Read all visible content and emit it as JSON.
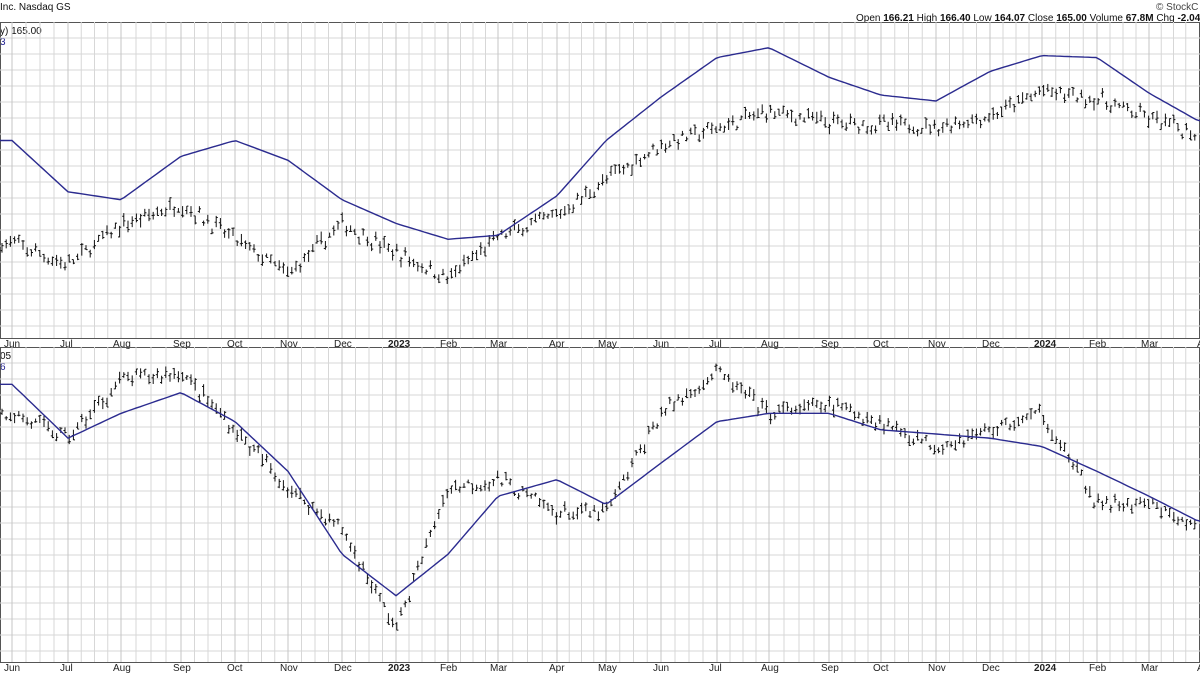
{
  "header": {
    "title_fragment": "Inc. Nasdaq GS",
    "copyright": "© StockC",
    "quote": {
      "open_label": "Open",
      "open": "166.21",
      "high_label": "High",
      "high": "166.40",
      "low_label": "Low",
      "low": "164.07",
      "close_label": "Close",
      "close": "165.00",
      "volume_label": "Volume",
      "volume": "67.8M",
      "chg_label": "Chg",
      "chg": "-2.04"
    }
  },
  "top_panel": {
    "legend_line1": "y) 165.00",
    "legend_line2": "3",
    "legend_color": "#1f1f8f"
  },
  "bottom_panel": {
    "legend_line1": "05",
    "legend_line2": "6",
    "legend_color": "#1f1f8f"
  },
  "x_axis": {
    "labels": [
      "Jun",
      "Jul",
      "Aug",
      "Sep",
      "Oct",
      "Nov",
      "Dec",
      "2023",
      "Feb",
      "Mar",
      "Apr",
      "May",
      "Jun",
      "Jul",
      "Aug",
      "Sep",
      "Oct",
      "Nov",
      "Dec",
      "2024",
      "Feb",
      "Mar",
      "Ap"
    ],
    "bold": [
      "2023",
      "2024"
    ]
  },
  "colors": {
    "bars": "#111111",
    "moving_average": "#2b2b8f",
    "grid": "#d7d7d7",
    "axis": "#555555"
  },
  "chart_data": [
    {
      "type": "line",
      "panel": "top",
      "legend_value": "165.00",
      "xlabel": "",
      "ylabel": "",
      "grid": true,
      "x": [
        "Jun",
        "Jul",
        "Aug",
        "Sep",
        "Oct",
        "Nov",
        "Dec",
        "2023",
        "Feb",
        "Mar",
        "Apr",
        "May",
        "Jun",
        "Jul",
        "Aug",
        "Sep",
        "Oct",
        "Nov",
        "Dec",
        "2024",
        "Feb",
        "Mar",
        "Ap"
      ],
      "series": [
        {
          "role": "price_bars",
          "values": [
            108,
            97,
            117,
            128,
            110,
            92,
            118,
            103,
            90,
            111,
            122,
            140,
            158,
            166,
            175,
            169,
            168,
            167,
            172,
            185,
            181,
            171,
            163
          ]
        },
        {
          "role": "moving_average",
          "values": [
            160,
            134,
            130,
            152,
            160,
            150,
            130,
            118,
            110,
            112,
            132,
            160,
            182,
            202,
            207,
            192,
            183,
            180,
            195,
            203,
            202,
            184,
            170
          ]
        }
      ]
    },
    {
      "type": "line",
      "panel": "bottom",
      "legend_value": "05",
      "xlabel": "",
      "ylabel": "",
      "grid": true,
      "x": [
        "Jun",
        "Jul",
        "Aug",
        "Sep",
        "Oct",
        "Nov",
        "Dec",
        "2023",
        "Feb",
        "Mar",
        "Apr",
        "May",
        "Jun",
        "Jul",
        "Aug",
        "Sep",
        "Oct",
        "Nov",
        "Dec",
        "2024",
        "Feb",
        "Mar",
        "Ap"
      ],
      "series": [
        {
          "role": "price_bars",
          "values": [
            1.0,
            0.94,
            1.08,
            1.1,
            0.96,
            0.82,
            0.72,
            0.48,
            0.82,
            0.84,
            0.76,
            0.76,
            1.0,
            1.1,
            1.0,
            1.02,
            0.98,
            0.92,
            0.96,
            1.0,
            0.78,
            0.78,
            0.72
          ]
        },
        {
          "role": "moving_average",
          "values": [
            1.07,
            0.94,
            1.0,
            1.05,
            0.98,
            0.86,
            0.66,
            0.56,
            0.66,
            0.8,
            0.84,
            0.78,
            0.88,
            0.98,
            1.0,
            1.0,
            0.96,
            0.95,
            0.94,
            0.92,
            0.86,
            0.8,
            0.74
          ]
        }
      ]
    }
  ]
}
